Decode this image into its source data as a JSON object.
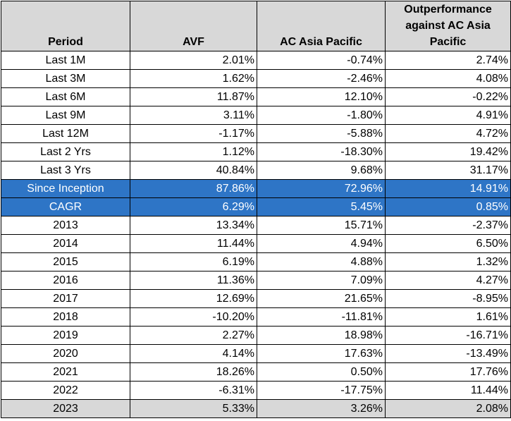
{
  "headers": [
    "Period",
    "AVF",
    "AC Asia Pacific",
    "Outperformance against AC Asia Pacific"
  ],
  "rows": [
    {
      "period": "Last 1M",
      "avf": "2.01%",
      "ac": "-0.74%",
      "out": "2.74%",
      "style": ""
    },
    {
      "period": "Last 3M",
      "avf": "1.62%",
      "ac": "-2.46%",
      "out": "4.08%",
      "style": ""
    },
    {
      "period": "Last 6M",
      "avf": "11.87%",
      "ac": "12.10%",
      "out": "-0.22%",
      "style": ""
    },
    {
      "period": "Last 9M",
      "avf": "3.11%",
      "ac": "-1.80%",
      "out": "4.91%",
      "style": ""
    },
    {
      "period": "Last 12M",
      "avf": "-1.17%",
      "ac": "-5.88%",
      "out": "4.72%",
      "style": ""
    },
    {
      "period": "Last 2 Yrs",
      "avf": "1.12%",
      "ac": "-18.30%",
      "out": "19.42%",
      "style": ""
    },
    {
      "period": "Last 3 Yrs",
      "avf": "40.84%",
      "ac": "9.68%",
      "out": "31.17%",
      "style": ""
    },
    {
      "period": "Since Inception",
      "avf": "87.86%",
      "ac": "72.96%",
      "out": "14.91%",
      "style": "hl"
    },
    {
      "period": "CAGR",
      "avf": "6.29%",
      "ac": "5.45%",
      "out": "0.85%",
      "style": "hl"
    },
    {
      "period": "2013",
      "avf": "13.34%",
      "ac": "15.71%",
      "out": "-2.37%",
      "style": ""
    },
    {
      "period": "2014",
      "avf": "11.44%",
      "ac": "4.94%",
      "out": "6.50%",
      "style": ""
    },
    {
      "period": "2015",
      "avf": "6.19%",
      "ac": "4.88%",
      "out": "1.32%",
      "style": ""
    },
    {
      "period": "2016",
      "avf": "11.36%",
      "ac": "7.09%",
      "out": "4.27%",
      "style": ""
    },
    {
      "period": "2017",
      "avf": "12.69%",
      "ac": "21.65%",
      "out": "-8.95%",
      "style": ""
    },
    {
      "period": "2018",
      "avf": "-10.20%",
      "ac": "-11.81%",
      "out": "1.61%",
      "style": ""
    },
    {
      "period": "2019",
      "avf": "2.27%",
      "ac": "18.98%",
      "out": "-16.71%",
      "style": ""
    },
    {
      "period": "2020",
      "avf": "4.14%",
      "ac": "17.63%",
      "out": "-13.49%",
      "style": ""
    },
    {
      "period": "2021",
      "avf": "18.26%",
      "ac": "0.50%",
      "out": "17.76%",
      "style": ""
    },
    {
      "period": "2022",
      "avf": "-6.31%",
      "ac": "-17.75%",
      "out": "11.44%",
      "style": ""
    },
    {
      "period": "2023",
      "avf": "5.33%",
      "ac": "3.26%",
      "out": "2.08%",
      "style": "last"
    }
  ],
  "colors": {
    "header_bg": "#d8d8d8",
    "highlight_bg": "#2e75c6",
    "highlight_text": "#ffffff",
    "last_row_bg": "#d8d8d8"
  }
}
